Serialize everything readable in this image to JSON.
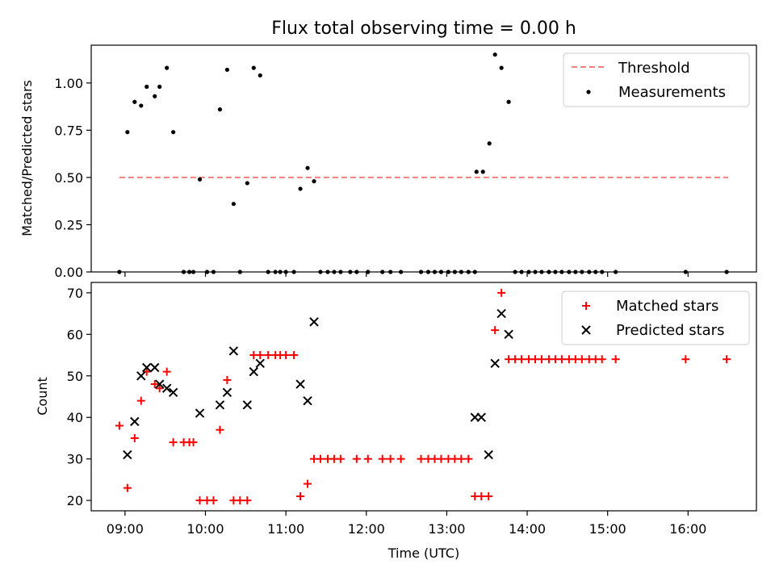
{
  "figure": {
    "title": "Flux total observing time = 0.00 h"
  },
  "chart_data": [
    {
      "type": "scatter",
      "ylabel": "Matched/Predicted stars",
      "xlabel": "",
      "xlim": [
        8.58,
        16.85
      ],
      "ylim": [
        0,
        1.2
      ],
      "xticks": [
        9,
        10,
        11,
        12,
        13,
        14,
        15,
        16
      ],
      "yticks": [
        0.0,
        0.25,
        0.5,
        0.75,
        1.0
      ],
      "ytick_labels": [
        "0.00",
        "0.25",
        "0.50",
        "0.75",
        "1.00"
      ],
      "legend": {
        "position": "upper right",
        "entries": [
          "Threshold",
          "Measurements"
        ]
      },
      "threshold": {
        "name": "Threshold",
        "y": 0.5,
        "x": [
          8.93,
          16.5
        ],
        "color": "#f08080",
        "style": "dashed"
      },
      "series": [
        {
          "name": "Measurements",
          "marker": "dot",
          "color": "#000000",
          "x": [
            8.93,
            9.03,
            9.12,
            9.2,
            9.27,
            9.37,
            9.43,
            9.52,
            9.6,
            9.73,
            9.8,
            9.85,
            9.93,
            10.02,
            10.1,
            10.18,
            10.27,
            10.35,
            10.43,
            10.52,
            10.6,
            10.68,
            10.78,
            10.87,
            10.93,
            11.0,
            11.1,
            11.18,
            11.27,
            11.35,
            11.43,
            11.52,
            11.6,
            11.68,
            11.8,
            11.88,
            12.02,
            12.2,
            12.3,
            12.43,
            12.68,
            12.77,
            12.85,
            12.93,
            13.02,
            13.1,
            13.18,
            13.27,
            13.35,
            13.37,
            13.45,
            13.53,
            13.6,
            13.68,
            13.77,
            13.85,
            13.93,
            14.02,
            14.1,
            14.18,
            14.27,
            14.35,
            14.43,
            14.52,
            14.6,
            14.68,
            14.77,
            14.85,
            14.93,
            15.1,
            15.97,
            16.48
          ],
          "y": [
            0.0,
            0.74,
            0.9,
            0.88,
            0.98,
            0.93,
            0.98,
            1.08,
            0.74,
            0.0,
            0.0,
            0.0,
            0.49,
            0.0,
            0.0,
            0.86,
            1.07,
            0.36,
            0.0,
            0.47,
            1.08,
            1.04,
            0.0,
            0.0,
            0.0,
            0.0,
            0.0,
            0.44,
            0.55,
            0.48,
            0.0,
            0.0,
            0.0,
            0.0,
            0.0,
            0.0,
            0.0,
            0.0,
            0.0,
            0.0,
            0.0,
            0.0,
            0.0,
            0.0,
            0.0,
            0.0,
            0.0,
            0.0,
            0.0,
            0.53,
            0.53,
            0.68,
            1.15,
            1.08,
            0.9,
            0.0,
            0.0,
            0.0,
            0.0,
            0.0,
            0.0,
            0.0,
            0.0,
            0.0,
            0.0,
            0.0,
            0.0,
            0.0,
            0.0,
            0.0,
            0.0,
            0.0
          ]
        }
      ]
    },
    {
      "type": "scatter",
      "ylabel": "Count",
      "xlabel": "Time (UTC)",
      "xlim": [
        8.58,
        16.85
      ],
      "ylim": [
        17.5,
        72.5
      ],
      "xticks": [
        9,
        10,
        11,
        12,
        13,
        14,
        15,
        16
      ],
      "xtick_labels": [
        "09:00",
        "10:00",
        "11:00",
        "12:00",
        "13:00",
        "14:00",
        "15:00",
        "16:00"
      ],
      "yticks": [
        20,
        30,
        40,
        50,
        60,
        70
      ],
      "ytick_labels": [
        "20",
        "30",
        "40",
        "50",
        "60",
        "70"
      ],
      "legend": {
        "position": "upper right",
        "entries": [
          "Matched stars",
          "Predicted stars"
        ]
      },
      "series": [
        {
          "name": "Matched stars",
          "marker": "plus",
          "color": "#ff0000",
          "x": [
            8.93,
            9.03,
            9.12,
            9.2,
            9.27,
            9.37,
            9.43,
            9.52,
            9.6,
            9.73,
            9.8,
            9.85,
            9.93,
            10.02,
            10.1,
            10.18,
            10.27,
            10.35,
            10.43,
            10.52,
            10.6,
            10.68,
            10.78,
            10.87,
            10.93,
            11.0,
            11.1,
            11.18,
            11.27,
            11.35,
            11.43,
            11.52,
            11.6,
            11.68,
            11.88,
            12.02,
            12.2,
            12.3,
            12.43,
            12.68,
            12.77,
            12.85,
            12.93,
            13.02,
            13.1,
            13.18,
            13.27,
            13.35,
            13.43,
            13.52,
            13.6,
            13.68,
            13.77,
            13.85,
            13.93,
            14.02,
            14.1,
            14.18,
            14.27,
            14.35,
            14.43,
            14.52,
            14.6,
            14.68,
            14.77,
            14.85,
            14.93,
            15.1,
            15.97,
            16.48
          ],
          "y": [
            38,
            23,
            35,
            44,
            51,
            48,
            47,
            51,
            34,
            34,
            34,
            34,
            20,
            20,
            20,
            37,
            49,
            20,
            20,
            20,
            55,
            55,
            55,
            55,
            55,
            55,
            55,
            21,
            24,
            30,
            30,
            30,
            30,
            30,
            30,
            30,
            30,
            30,
            30,
            30,
            30,
            30,
            30,
            30,
            30,
            30,
            30,
            21,
            21,
            21,
            61,
            70,
            54,
            54,
            54,
            54,
            54,
            54,
            54,
            54,
            54,
            54,
            54,
            54,
            54,
            54,
            54,
            54,
            54,
            54
          ]
        },
        {
          "name": "Predicted stars",
          "marker": "x",
          "color": "#000000",
          "x": [
            9.03,
            9.12,
            9.2,
            9.27,
            9.37,
            9.43,
            9.52,
            9.6,
            9.93,
            10.18,
            10.27,
            10.35,
            10.52,
            10.6,
            10.68,
            11.18,
            11.27,
            11.35,
            13.35,
            13.43,
            13.52,
            13.6,
            13.68,
            13.77
          ],
          "y": [
            31,
            39,
            50,
            52,
            52,
            48,
            47,
            46,
            41,
            43,
            46,
            56,
            43,
            51,
            53,
            48,
            44,
            63,
            40,
            40,
            31,
            53,
            65,
            60
          ]
        }
      ]
    }
  ]
}
